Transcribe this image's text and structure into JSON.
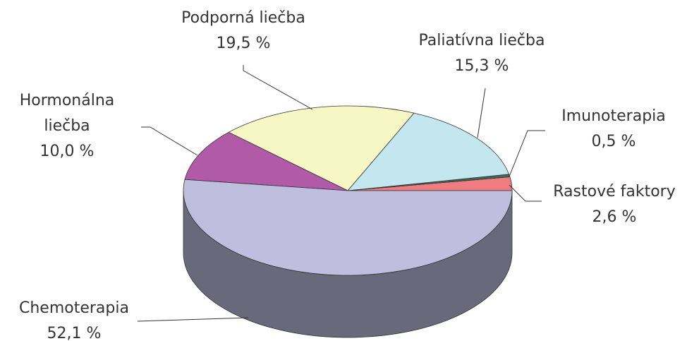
{
  "chart_data": {
    "type": "pie3d",
    "categories": [
      "Rastové faktory",
      "Imunoterapia",
      "Paliatívna liečba",
      "Podporná liečba",
      "Hormonálna liečba",
      "Chemoterapia"
    ],
    "values": [
      2.6,
      0.5,
      15.3,
      19.5,
      10.0,
      52.1
    ],
    "value_labels": [
      "2,6 %",
      "0,5 %",
      "15,3 %",
      "19,5 %",
      "10,0 %",
      "52,1 %"
    ],
    "colors": [
      "#ef7c80",
      "#3e6a5a",
      "#c4e6ee",
      "#f7f7c5",
      "#b05aa8",
      "#c0bedf"
    ]
  }
}
